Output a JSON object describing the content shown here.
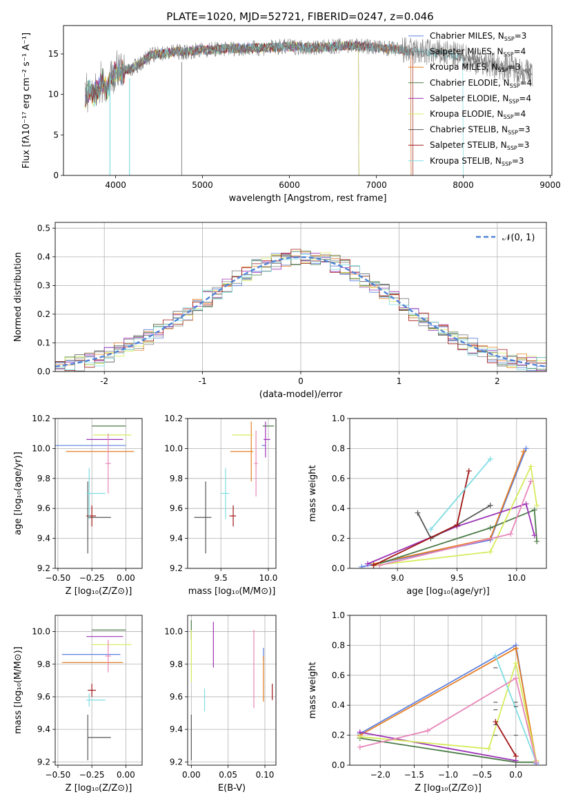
{
  "figure": {
    "title": "PLATE=1020, MJD=52721, FIBERID=0247, z=0.046"
  },
  "colors": [
    "#6a87e0",
    "#7b8fcc",
    "#e67e22",
    "#4a7a45",
    "#8e2bb0",
    "#d9e85a",
    "#555555",
    "#a01515",
    "#80d8e0"
  ],
  "series_colors": {
    "Chabrier MILES": "#5b7fe0",
    "Salpeter MILES": "#808080",
    "Kroupa MILES": "#e67e22",
    "Chabrier ELODIE": "#4a7a45",
    "Salpeter ELODIE": "#9b30b5",
    "Kroupa ELODIE": "#d6eb5a",
    "Chabrier STELIB": "#555555",
    "Salpeter STELIB": "#a01515",
    "Kroupa STELIB": "#7fdde3"
  },
  "chart_data": [
    {
      "id": "spectrum",
      "type": "line",
      "xlabel": "wavelength [Angstrom, rest frame]",
      "ylabel": "Flux [fλ10⁻¹⁷ erg cm⁻² s⁻¹ A⁻¹]",
      "xlim": [
        3400,
        9020
      ],
      "ylim": [
        0,
        18.5
      ],
      "xticks": [
        4000,
        5000,
        6000,
        7000,
        8000,
        9000
      ],
      "yticks": [
        0,
        5,
        10,
        15
      ],
      "grid": false,
      "legend_position": "top-right",
      "legend": [
        {
          "name": "Chabrier MILES",
          "suffix": "N",
          "sub": "SSP",
          "eq": "=3"
        },
        {
          "name": "Salpeter MILES",
          "suffix": "N",
          "sub": "SSP",
          "eq": "=4"
        },
        {
          "name": "Kroupa MILES",
          "suffix": "N",
          "sub": "SSP",
          "eq": "=3"
        },
        {
          "name": "Chabrier ELODIE",
          "suffix": "N",
          "sub": "SSP",
          "eq": "=4"
        },
        {
          "name": "Salpeter ELODIE",
          "suffix": "N",
          "sub": "SSP",
          "eq": "=4"
        },
        {
          "name": "Kroupa ELODIE",
          "suffix": "N",
          "sub": "SSP",
          "eq": "=4"
        },
        {
          "name": "Chabrier STELIB",
          "suffix": "N",
          "sub": "SSP",
          "eq": "=3"
        },
        {
          "name": "Salpeter STELIB",
          "suffix": "N",
          "sub": "SSP",
          "eq": "=3"
        },
        {
          "name": "Kroupa STELIB",
          "suffix": "N",
          "sub": "SSP",
          "eq": "=3"
        }
      ],
      "data_trace_x": [
        3650,
        3700,
        3750,
        3800,
        3850,
        3900,
        3950,
        4000,
        4100,
        4200,
        4300,
        4400,
        4500,
        4600,
        4700,
        4800,
        4900,
        5000,
        5200,
        5400,
        5600,
        5800,
        6000,
        6200,
        6400,
        6600,
        6800,
        7000,
        7200,
        7400,
        7600,
        7800,
        8000,
        8200,
        8400,
        8600,
        8800
      ],
      "data_trace_y": [
        9.5,
        10.5,
        9.8,
        10.8,
        11.5,
        10.5,
        12.2,
        12.6,
        13.0,
        13.2,
        14.0,
        14.8,
        15.0,
        15.1,
        15.3,
        15.2,
        15.4,
        15.5,
        15.6,
        15.7,
        15.7,
        15.8,
        15.9,
        15.8,
        15.8,
        16.0,
        16.0,
        15.8,
        15.6,
        15.3,
        15.2,
        15.0,
        14.6,
        14.0,
        13.5,
        13.2,
        12.5
      ],
      "model_end_x": [
        7400,
        7400,
        7400,
        6800,
        6800,
        6800,
        8800,
        7420,
        8000
      ]
    },
    {
      "id": "residuals",
      "type": "line",
      "xlabel": "(data-model)/error",
      "ylabel": "Normed distribution",
      "xlim": [
        -2.5,
        2.5
      ],
      "ylim": [
        0,
        0.52
      ],
      "xticks": [
        -2,
        -1,
        0,
        1,
        2
      ],
      "yticks": [
        0.0,
        0.1,
        0.2,
        0.3,
        0.4,
        0.5
      ],
      "grid": true,
      "legend_position": "top-right",
      "legend": [
        {
          "name": "𝒩(0, 1)"
        }
      ],
      "gaussian": {
        "mean": 0,
        "sigma": 1
      }
    },
    {
      "id": "z-age",
      "type": "scatter",
      "xlabel": "Z [log₁₀(Z/Z⊙)]",
      "ylabel": "age  [log₁₀(age/yr)]",
      "xlim": [
        -0.52,
        0.12
      ],
      "ylim": [
        9.2,
        10.2
      ],
      "xticks": [
        -0.5,
        -0.25,
        0.0
      ],
      "xticklabels": [
        "−0.50",
        "−0.25",
        "0.00"
      ],
      "yticks": [
        9.2,
        9.4,
        9.6,
        9.8,
        10.0,
        10.2
      ],
      "grid": true,
      "points": [
        {
          "color": "#5b7fe0",
          "x": -0.1,
          "y": 10.02,
          "xerr": [
            0.45,
            0.1
          ],
          "yerr": 0.0
        },
        {
          "color": "#e67e22",
          "x": -0.12,
          "y": 9.98,
          "xerr": [
            0.32,
            0.18
          ],
          "yerr": 0.0
        },
        {
          "color": "#4a7a45",
          "x": -0.1,
          "y": 10.15,
          "xerr": [
            0.15,
            0.1
          ],
          "yerr": 0.0
        },
        {
          "color": "#9b30b5",
          "x": -0.12,
          "y": 10.06,
          "xerr": [
            0.17,
            0.1
          ],
          "yerr": 0.0
        },
        {
          "color": "#d6eb5a",
          "x": -0.12,
          "y": 10.09,
          "xerr": [
            0.12,
            0.16
          ],
          "yerr": 0.0
        },
        {
          "color": "#555555",
          "x": -0.28,
          "y": 9.54,
          "xerr": [
            0.0,
            0.17
          ],
          "yerr": 0.24
        },
        {
          "color": "#a01515",
          "x": -0.25,
          "y": 9.55,
          "xerr": [
            0.04,
            0.03
          ],
          "yerr": 0.07
        },
        {
          "color": "#7fdde3",
          "x": -0.27,
          "y": 9.7,
          "xerr": [
            0.02,
            0.12
          ],
          "yerr": 0.17
        },
        {
          "color": "#e884b8",
          "x": -0.13,
          "y": 9.9,
          "xerr": [
            0.02,
            0.02
          ],
          "yerr": 0.2
        }
      ]
    },
    {
      "id": "mass-age",
      "type": "scatter",
      "xlabel": "mass [log₁₀(M/M⊙)]",
      "ylabel": "",
      "xlim": [
        9.15,
        10.08
      ],
      "ylim": [
        9.2,
        10.2
      ],
      "xticks": [
        9.5,
        10.0
      ],
      "xticklabels": [
        "9.5",
        "10.0"
      ],
      "yticks": [
        9.2,
        9.4,
        9.6,
        9.8,
        10.0,
        10.2
      ],
      "grid": true,
      "points": [
        {
          "color": "#5b7fe0",
          "x": 9.95,
          "y": 10.02,
          "xerr": [
            0.02,
            0.02
          ],
          "yerr": 0.0
        },
        {
          "color": "#e67e22",
          "x": 9.82,
          "y": 9.98,
          "xerr": [
            0.22,
            0.02
          ],
          "yerr": 0.2
        },
        {
          "color": "#4a7a45",
          "x": 9.96,
          "y": 10.15,
          "xerr": [
            0.02,
            0.1
          ],
          "yerr": 0.0
        },
        {
          "color": "#9b30b5",
          "x": 9.97,
          "y": 10.06,
          "xerr": [
            0.02,
            0.05
          ],
          "yerr": 0.12
        },
        {
          "color": "#d6eb5a",
          "x": 9.8,
          "y": 10.09,
          "xerr": [
            0.18,
            0.04
          ],
          "yerr": 0.0
        },
        {
          "color": "#555555",
          "x": 9.34,
          "y": 9.54,
          "xerr": [
            0.12,
            0.06
          ],
          "yerr": 0.24
        },
        {
          "color": "#a01515",
          "x": 9.63,
          "y": 9.55,
          "xerr": [
            0.04,
            0.03
          ],
          "yerr": 0.07
        },
        {
          "color": "#7fdde3",
          "x": 9.55,
          "y": 9.7,
          "xerr": [
            0.05,
            0.04
          ],
          "yerr": 0.17
        },
        {
          "color": "#e884b8",
          "x": 9.87,
          "y": 9.9,
          "xerr": [
            0.02,
            0.02
          ],
          "yerr": 0.22
        }
      ]
    },
    {
      "id": "age-massweight",
      "type": "line",
      "xlabel": "age  [log₁₀(age/yr)]",
      "ylabel": "mass weight",
      "xlim": [
        8.6,
        10.25
      ],
      "ylim": [
        0,
        1.0
      ],
      "xticks": [
        9.0,
        9.5,
        10.0
      ],
      "xticklabels": [
        "9.0",
        "9.5",
        "10.0"
      ],
      "yticks": [
        0.0,
        0.2,
        0.4,
        0.6,
        0.8,
        1.0
      ],
      "grid": true,
      "series": [
        {
          "color": "#5b7fe0",
          "x": [
            8.7,
            9.78,
            10.08
          ],
          "y": [
            0.01,
            0.19,
            0.8
          ]
        },
        {
          "color": "#e67e22",
          "x": [
            8.8,
            9.78,
            10.06
          ],
          "y": [
            0.03,
            0.2,
            0.78
          ]
        },
        {
          "color": "#4a7a45",
          "x": [
            8.8,
            9.78,
            10.15,
            10.17
          ],
          "y": [
            0.02,
            0.27,
            0.39,
            0.18
          ]
        },
        {
          "color": "#9b30b5",
          "x": [
            8.75,
            9.5,
            10.08,
            10.15
          ],
          "y": [
            0.03,
            0.28,
            0.43,
            0.22
          ]
        },
        {
          "color": "#d6eb5a",
          "x": [
            8.8,
            9.78,
            10.12,
            10.17
          ],
          "y": [
            0.02,
            0.11,
            0.68,
            0.42
          ]
        },
        {
          "color": "#555555",
          "x": [
            9.17,
            9.28,
            9.5,
            9.78
          ],
          "y": [
            0.37,
            0.2,
            0.29,
            0.42
          ]
        },
        {
          "color": "#a01515",
          "x": [
            8.8,
            9.5,
            9.6
          ],
          "y": [
            0.02,
            0.29,
            0.65
          ]
        },
        {
          "color": "#7fdde3",
          "x": [
            9.28,
            9.78
          ],
          "y": [
            0.26,
            0.73
          ]
        },
        {
          "color": "#e884b8",
          "x": [
            8.85,
            9.95,
            10.12
          ],
          "y": [
            0.02,
            0.23,
            0.58
          ]
        }
      ]
    },
    {
      "id": "z-mass",
      "type": "scatter",
      "xlabel": "Z [log₁₀(Z/Z⊙)]",
      "ylabel": "mass [log₁₀(M/M⊙)]",
      "xlim": [
        -0.52,
        0.12
      ],
      "ylim": [
        9.18,
        10.1
      ],
      "xticks": [
        -0.5,
        -0.25,
        0.0
      ],
      "xticklabels": [
        "−0.50",
        "−0.25",
        "0.00"
      ],
      "yticks": [
        9.2,
        9.4,
        9.6,
        9.8,
        10.0
      ],
      "grid": true,
      "points": [
        {
          "color": "#5b7fe0",
          "x": -0.12,
          "y": 9.86,
          "xerr": [
            0.35,
            0.08
          ],
          "yerr": 0.0
        },
        {
          "color": "#e67e22",
          "x": -0.12,
          "y": 9.81,
          "xerr": [
            0.35,
            0.1
          ],
          "yerr": 0.0
        },
        {
          "color": "#4a7a45",
          "x": -0.1,
          "y": 10.01,
          "xerr": [
            0.15,
            0.1
          ],
          "yerr": 0.0
        },
        {
          "color": "#9b30b5",
          "x": -0.12,
          "y": 9.97,
          "xerr": [
            0.17,
            0.1
          ],
          "yerr": 0.0
        },
        {
          "color": "#d6eb5a",
          "x": -0.12,
          "y": 9.92,
          "xerr": [
            0.13,
            0.16
          ],
          "yerr": 0.0
        },
        {
          "color": "#555555",
          "x": -0.28,
          "y": 9.35,
          "xerr": [
            0.0,
            0.17
          ],
          "yerr": 0.14
        },
        {
          "color": "#a01515",
          "x": -0.25,
          "y": 9.64,
          "xerr": [
            0.03,
            0.03
          ],
          "yerr": 0.04
        },
        {
          "color": "#7fdde3",
          "x": -0.27,
          "y": 9.58,
          "xerr": [
            0.02,
            0.12
          ],
          "yerr": 0.04
        },
        {
          "color": "#e884b8",
          "x": -0.13,
          "y": 9.85,
          "xerr": [
            0.02,
            0.02
          ],
          "yerr": 0.1
        }
      ]
    },
    {
      "id": "ebv-mass",
      "type": "scatter",
      "xlabel": "E(B-V)",
      "ylabel": "",
      "xlim": [
        -0.005,
        0.115
      ],
      "ylim": [
        9.18,
        10.1
      ],
      "xticks": [
        0.0,
        0.05,
        0.1
      ],
      "xticklabels": [
        "0.00",
        "0.05",
        "0.10"
      ],
      "yticks": [
        9.2,
        9.4,
        9.6,
        9.8,
        10.0
      ],
      "grid": true,
      "points": [
        {
          "color": "#5b7fe0",
          "x": 0.098,
          "y": 9.86,
          "xerr": [
            0,
            0
          ],
          "yerr": 0.04
        },
        {
          "color": "#e67e22",
          "x": 0.098,
          "y": 9.71,
          "xerr": [
            0,
            0
          ],
          "yerr": 0.14
        },
        {
          "color": "#4a7a45",
          "x": 0.0,
          "y": 10.01,
          "xerr": [
            0,
            0
          ],
          "yerr": 0.06
        },
        {
          "color": "#9b30b5",
          "x": 0.03,
          "y": 9.92,
          "xerr": [
            0,
            0
          ],
          "yerr": 0.14
        },
        {
          "color": "#d6eb5a",
          "x": 0.0,
          "y": 9.85,
          "xerr": [
            0,
            0
          ],
          "yerr": 0.16
        },
        {
          "color": "#555555",
          "x": 0.0,
          "y": 9.35,
          "xerr": [
            0,
            0
          ],
          "yerr": 0.14
        },
        {
          "color": "#a01515",
          "x": 0.11,
          "y": 9.63,
          "xerr": [
            0,
            0
          ],
          "yerr": 0.05
        },
        {
          "color": "#7fdde3",
          "x": 0.018,
          "y": 9.58,
          "xerr": [
            0,
            0
          ],
          "yerr": 0.07
        },
        {
          "color": "#e884b8",
          "x": 0.085,
          "y": 9.77,
          "xerr": [
            0,
            0
          ],
          "yerr": 0.24
        }
      ]
    },
    {
      "id": "z-massweight",
      "type": "line",
      "xlabel": "Z [log₁₀(Z/Z⊙)]",
      "ylabel": "mass weight",
      "xlim": [
        -2.45,
        0.45
      ],
      "ylim": [
        0,
        1.0
      ],
      "xticks": [
        -2.0,
        -1.5,
        -1.0,
        -0.5,
        0.0
      ],
      "xticklabels": [
        "−2.0",
        "−1.5",
        "−1.0",
        "−0.5",
        "0.0"
      ],
      "yticks": [
        0.0,
        0.2,
        0.4,
        0.6,
        0.8,
        1.0
      ],
      "grid": true,
      "series": [
        {
          "color": "#5b7fe0",
          "x": [
            -2.3,
            0.0,
            0.3
          ],
          "y": [
            0.21,
            0.8,
            0.01
          ]
        },
        {
          "color": "#e67e22",
          "x": [
            -2.3,
            0.0,
            0.3
          ],
          "y": [
            0.2,
            0.78,
            0.03
          ]
        },
        {
          "color": "#4a7a45",
          "x": [
            -2.3,
            0.0,
            0.3
          ],
          "y": [
            0.18,
            0.02,
            0.02
          ]
        },
        {
          "color": "#9b30b5",
          "x": [
            -2.3,
            0.0
          ],
          "y": [
            0.22,
            0.03
          ]
        },
        {
          "color": "#d6eb5a",
          "x": [
            -2.3,
            -0.4,
            0.0,
            0.3
          ],
          "y": [
            0.19,
            0.11,
            0.68,
            0.03
          ]
        },
        {
          "color": "#a01515",
          "x": [
            -0.3,
            0.0
          ],
          "y": [
            0.29,
            0.06
          ]
        },
        {
          "color": "#7fdde3",
          "x": [
            -0.3,
            0.3
          ],
          "y": [
            0.73,
            0.02
          ]
        },
        {
          "color": "#e884b8",
          "x": [
            -2.3,
            -1.3,
            0.0,
            0.3
          ],
          "y": [
            0.12,
            0.23,
            0.58,
            0.02
          ]
        }
      ],
      "markers": [
        {
          "color": "#555555",
          "x": -0.3,
          "y": [
            0.65,
            0.42,
            0.37,
            0.27,
            0.2
          ]
        },
        {
          "color": "#555555",
          "x": 0.0,
          "y": [
            0.42,
            0.39,
            0.2
          ]
        }
      ]
    }
  ]
}
